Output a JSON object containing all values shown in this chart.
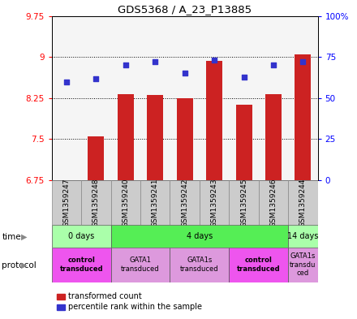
{
  "title": "GDS5368 / A_23_P13885",
  "samples": [
    "GSM1359247",
    "GSM1359248",
    "GSM1359240",
    "GSM1359241",
    "GSM1359242",
    "GSM1359243",
    "GSM1359245",
    "GSM1359246",
    "GSM1359244"
  ],
  "bar_values": [
    6.68,
    7.55,
    8.32,
    8.3,
    8.25,
    8.93,
    8.13,
    8.32,
    9.05
  ],
  "bar_base": 6.75,
  "dot_values": [
    60,
    62,
    70,
    72,
    65,
    73,
    63,
    70,
    72
  ],
  "ylim_left": [
    6.75,
    9.75
  ],
  "ylim_right": [
    0,
    100
  ],
  "yticks_left": [
    6.75,
    7.5,
    8.25,
    9.0,
    9.75
  ],
  "ytick_labels_left": [
    "6.75",
    "7.5",
    "8.25",
    "9",
    "9.75"
  ],
  "yticks_right": [
    0,
    25,
    50,
    75,
    100
  ],
  "ytick_labels_right": [
    "0",
    "25",
    "50",
    "75",
    "100%"
  ],
  "grid_yticks": [
    7.5,
    8.25,
    9.0
  ],
  "bar_color": "#cc2222",
  "dot_color": "#3333cc",
  "plot_bg": "#f5f5f5",
  "time_groups": [
    {
      "label": "0 days",
      "start": 0,
      "end": 2,
      "color": "#aaffaa"
    },
    {
      "label": "4 days",
      "start": 2,
      "end": 8,
      "color": "#55ee55"
    },
    {
      "label": "14 days",
      "start": 8,
      "end": 9,
      "color": "#aaffaa"
    }
  ],
  "protocol_groups": [
    {
      "label": "control\ntransduced",
      "start": 0,
      "end": 2,
      "color": "#ee55ee",
      "bold": true
    },
    {
      "label": "GATA1\ntransduced",
      "start": 2,
      "end": 4,
      "color": "#dd99dd",
      "bold": false
    },
    {
      "label": "GATA1s\ntransduced",
      "start": 4,
      "end": 6,
      "color": "#dd99dd",
      "bold": false
    },
    {
      "label": "control\ntransduced",
      "start": 6,
      "end": 8,
      "color": "#ee55ee",
      "bold": true
    },
    {
      "label": "GATA1s\ntransdu\nced",
      "start": 8,
      "end": 9,
      "color": "#dd99dd",
      "bold": false
    }
  ],
  "legend_items": [
    {
      "color": "#cc2222",
      "label": "transformed count"
    },
    {
      "color": "#3333cc",
      "label": "percentile rank within the sample"
    }
  ]
}
